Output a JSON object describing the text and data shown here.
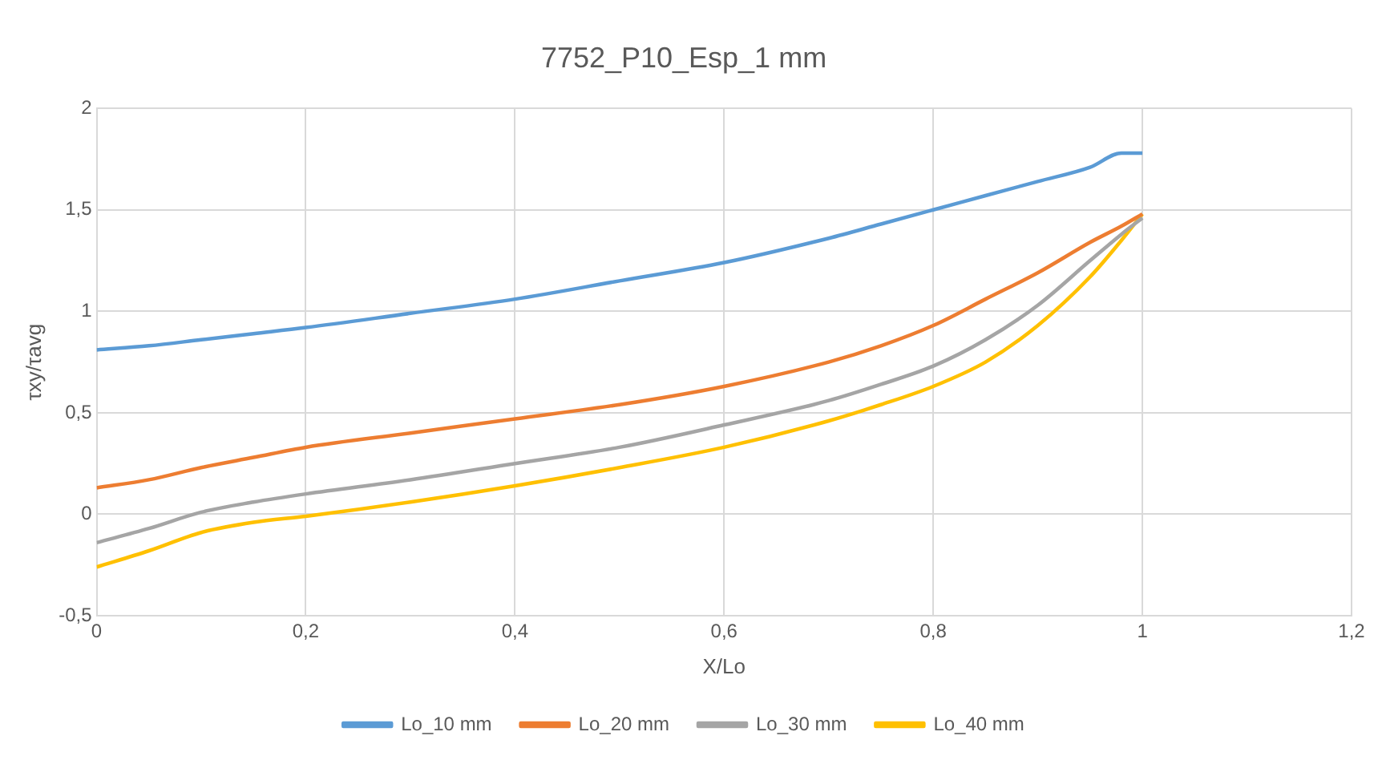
{
  "chart_data": {
    "type": "line",
    "title": "7752_P10_Esp_1 mm",
    "xlabel": "X/Lo",
    "ylabel": "τxy/τavg",
    "x": [
      0,
      0.05,
      0.1,
      0.15,
      0.2,
      0.3,
      0.4,
      0.5,
      0.6,
      0.7,
      0.75,
      0.8,
      0.85,
      0.9,
      0.95,
      0.98,
      1.0
    ],
    "series": [
      {
        "name": "Lo_10 mm",
        "color": "#5b9bd5",
        "values": [
          0.81,
          0.83,
          0.86,
          0.89,
          0.92,
          0.99,
          1.06,
          1.15,
          1.24,
          1.36,
          1.43,
          1.5,
          1.57,
          1.64,
          1.71,
          1.78,
          1.78
        ]
      },
      {
        "name": "Lo_20 mm",
        "color": "#ed7d31",
        "values": [
          0.13,
          0.17,
          0.23,
          0.28,
          0.33,
          0.4,
          0.47,
          0.54,
          0.63,
          0.75,
          0.83,
          0.93,
          1.06,
          1.19,
          1.34,
          1.42,
          1.48
        ]
      },
      {
        "name": "Lo_30 mm",
        "color": "#a5a5a5",
        "values": [
          -0.14,
          -0.07,
          0.01,
          0.06,
          0.1,
          0.17,
          0.25,
          0.33,
          0.44,
          0.56,
          0.64,
          0.73,
          0.86,
          1.03,
          1.25,
          1.38,
          1.46
        ]
      },
      {
        "name": "Lo_40 mm",
        "color": "#ffc000",
        "values": [
          -0.26,
          -0.18,
          -0.09,
          -0.04,
          -0.01,
          0.06,
          0.14,
          0.23,
          0.33,
          0.46,
          0.54,
          0.63,
          0.75,
          0.93,
          1.17,
          1.35,
          1.48
        ]
      }
    ],
    "xlim": [
      0,
      1.2
    ],
    "xticks": [
      0,
      {
        "value": 0.2,
        "label": "0,2"
      },
      {
        "value": 0.4,
        "label": "0,4"
      },
      {
        "value": 0.6,
        "label": "0,6"
      },
      {
        "value": 0.8,
        "label": "0,8"
      },
      1,
      {
        "value": 1.2,
        "label": "1,2"
      }
    ],
    "ylim": [
      -0.5,
      2
    ],
    "yticks": [
      {
        "value": -0.5,
        "label": "-0,5"
      },
      0,
      {
        "value": 0.5,
        "label": "0,5"
      },
      1,
      {
        "value": 1.5,
        "label": "1,5"
      },
      2
    ],
    "grid": true,
    "legend": "bottom",
    "marker": "none",
    "line_style": "solid"
  }
}
